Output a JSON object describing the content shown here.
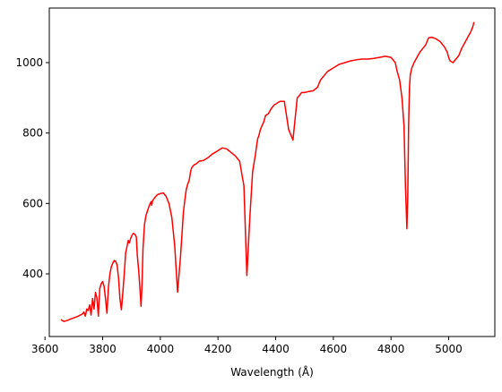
{
  "chart_data": {
    "type": "line",
    "title": "",
    "xlabel": "Wavelength (Å)",
    "ylabel": "",
    "xlim": [
      3615,
      5160
    ],
    "ylim": [
      222,
      1155
    ],
    "x_ticks": [
      3600,
      3800,
      4000,
      4200,
      4400,
      4600,
      4800,
      5000
    ],
    "y_ticks": [
      400,
      600,
      800,
      1000
    ],
    "grid": false,
    "legend": "none",
    "line_color": "#ff0000",
    "series": [
      {
        "x": [
          3655,
          3665,
          3675,
          3690,
          3700,
          3710,
          3720,
          3730,
          3735,
          3740,
          3745,
          3750,
          3755,
          3760,
          3765,
          3770,
          3775,
          3780,
          3785,
          3790,
          3795,
          3800,
          3805,
          3810,
          3815,
          3820,
          3825,
          3830,
          3835,
          3840,
          3845,
          3850,
          3855,
          3860,
          3865,
          3870,
          3875,
          3880,
          3885,
          3889,
          3893,
          3897,
          3902,
          3907,
          3912,
          3917,
          3920,
          3925,
          3930,
          3933,
          3936,
          3940,
          3945,
          3950,
          3955,
          3960,
          3965,
          3968,
          3970,
          3973,
          3977,
          3982,
          3990,
          4000,
          4010,
          4020,
          4030,
          4040,
          4050,
          4060,
          4070,
          4080,
          4085,
          4090,
          4095,
          4100,
          4103,
          4105,
          4108,
          4112,
          4118,
          4125,
          4135,
          4150,
          4165,
          4180,
          4200,
          4215,
          4230,
          4245,
          4260,
          4275,
          4290,
          4300,
          4310,
          4320,
          4330,
          4335,
          4338,
          4341,
          4344,
          4347,
          4352,
          4358,
          4365,
          4375,
          4385,
          4395,
          4405,
          4415,
          4430,
          4445,
          4460,
          4475,
          4481,
          4485,
          4490,
          4500,
          4515,
          4530,
          4545,
          4550,
          4555,
          4565,
          4580,
          4600,
          4620,
          4640,
          4660,
          4680,
          4700,
          4720,
          4740,
          4760,
          4780,
          4800,
          4815,
          4820,
          4830,
          4838,
          4845,
          4850,
          4855,
          4858,
          4861,
          4864,
          4867,
          4872,
          4880,
          4890,
          4900,
          4910,
          4920,
          4925,
          4930,
          4940,
          4955,
          4970,
          4985,
          4995,
          5000,
          5005,
          5015,
          5025,
          5035,
          5045,
          5055,
          5065,
          5075,
          5083,
          5088
        ],
        "y": [
          270,
          265,
          267,
          272,
          275,
          278,
          282,
          286,
          292,
          280,
          300,
          296,
          312,
          283,
          330,
          300,
          347,
          332,
          280,
          358,
          372,
          378,
          365,
          330,
          288,
          360,
          400,
          420,
          430,
          438,
          436,
          425,
          390,
          330,
          298,
          345,
          400,
          460,
          480,
          495,
          488,
          500,
          510,
          515,
          512,
          505,
          455,
          410,
          352,
          308,
          360,
          470,
          540,
          565,
          578,
          590,
          600,
          605,
          595,
          608,
          612,
          618,
          625,
          628,
          630,
          620,
          600,
          560,
          480,
          348,
          450,
          575,
          610,
          640,
          655,
          665,
          680,
          690,
          700,
          705,
          710,
          713,
          720,
          722,
          730,
          740,
          750,
          758,
          755,
          745,
          735,
          720,
          650,
          395,
          555,
          690,
          740,
          770,
          785,
          790,
          800,
          810,
          820,
          830,
          850,
          855,
          870,
          880,
          885,
          890,
          890,
          810,
          780,
          900,
          905,
          910,
          915,
          915,
          918,
          920,
          930,
          940,
          950,
          960,
          975,
          985,
          995,
          1000,
          1005,
          1008,
          1010,
          1010,
          1012,
          1015,
          1018,
          1015,
          1000,
          980,
          950,
          900,
          820,
          650,
          528,
          620,
          820,
          930,
          965,
          985,
          1000,
          1015,
          1030,
          1040,
          1050,
          1060,
          1070,
          1072,
          1068,
          1060,
          1045,
          1030,
          1015,
          1005,
          1000,
          1010,
          1020,
          1040,
          1055,
          1070,
          1085,
          1100,
          1115
        ]
      }
    ]
  }
}
